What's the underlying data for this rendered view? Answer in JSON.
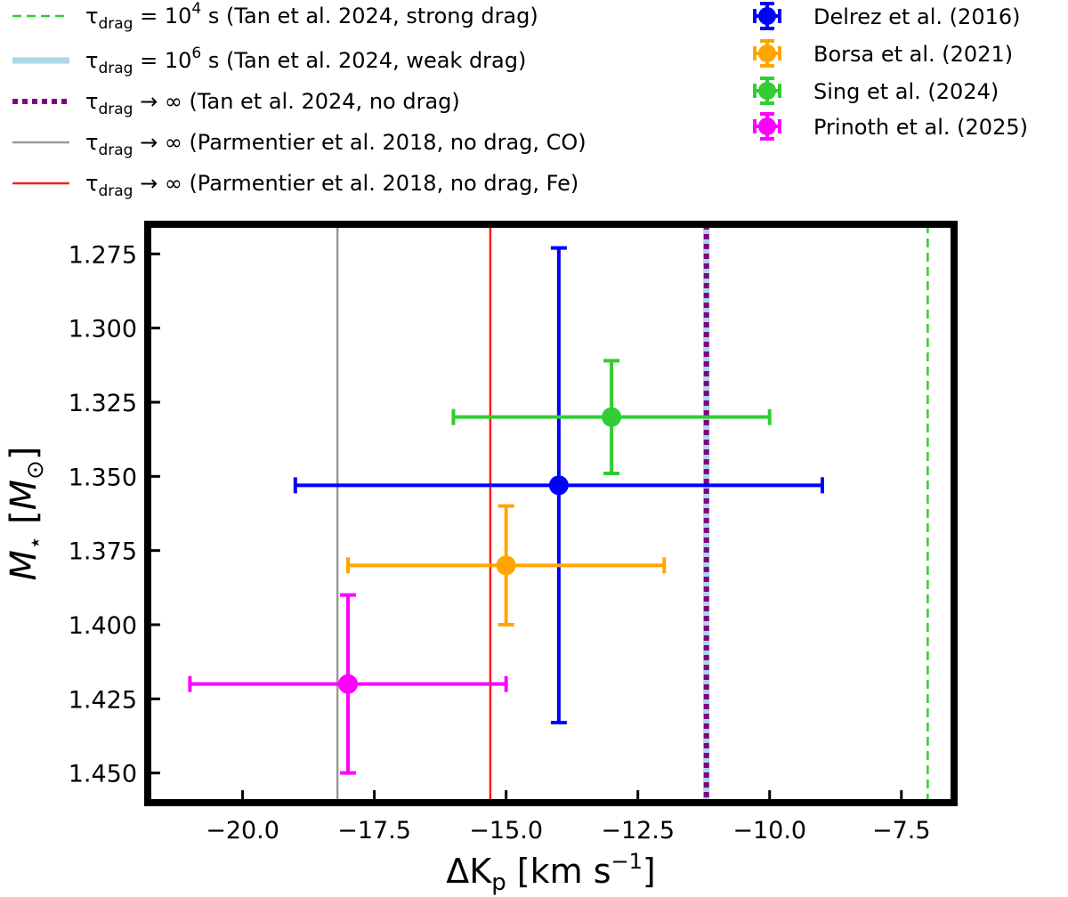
{
  "chart_data": {
    "type": "scatter",
    "xlabel": "ΔK",
    "xlabel_sub": "p",
    "xlabel_unit": "[km s",
    "xlabel_unit_exp": "−1",
    "xlabel_unit_close": "]",
    "ylabel": "M",
    "ylabel_sub": "⋆",
    "ylabel_unit": "[M",
    "ylabel_unit_sub": "⊙",
    "ylabel_unit_close": "]",
    "xlim": [
      -21.8,
      -6.5
    ],
    "ylim": [
      1.46,
      1.265
    ],
    "y_inverted": true,
    "xticks": [
      -20.0,
      -17.5,
      -15.0,
      -12.5,
      -10.0,
      -7.5
    ],
    "xtick_labels": [
      "−20.0",
      "−17.5",
      "−15.0",
      "−12.5",
      "−10.0",
      "−7.5"
    ],
    "yticks": [
      1.275,
      1.3,
      1.325,
      1.35,
      1.375,
      1.4,
      1.425,
      1.45
    ],
    "ytick_labels": [
      "1.275",
      "1.300",
      "1.325",
      "1.350",
      "1.375",
      "1.400",
      "1.425",
      "1.450"
    ],
    "grid": false,
    "legend_left_placement": "above-left",
    "legend_right_placement": "above-right",
    "vlines": [
      {
        "name": "τ_drag = 10^4 s (Tan et al. 2024, strong drag)",
        "x": -7.0,
        "color": "#32cd32",
        "style": "dashed",
        "label_pre": "= 10",
        "label_exp": "4",
        "label_post": " s (Tan et al.  2024,  strong drag)"
      },
      {
        "name": "τ_drag = 10^6 s (Tan et al. 2024, weak drag)",
        "x": -11.2,
        "color": "#add8e6",
        "style": "thick",
        "label_pre": "= 10",
        "label_exp": "6",
        "label_post": " s (Tan et al.  2024,  weak drag)"
      },
      {
        "name": "τ_drag → ∞ (Tan et al. 2024, no drag)",
        "x": -11.2,
        "color": "#800080",
        "style": "dotted",
        "label_pre": "→ ∞ (Tan et al.  2024,  no drag)",
        "label_exp": "",
        "label_post": ""
      },
      {
        "name": "τ_drag → ∞ (Parmentier et al. 2018, no drag, CO)",
        "x": -18.2,
        "color": "#999999",
        "style": "solid",
        "label_pre": "→ ∞ (Parmentier et al.  2018,  no drag,  CO)",
        "label_exp": "",
        "label_post": ""
      },
      {
        "name": "τ_drag → ∞ (Parmentier et al. 2018, no drag, Fe)",
        "x": -15.3,
        "color": "#ff1a1a",
        "style": "solid",
        "label_pre": "→ ∞ (Parmentier et al.  2018,  no drag,  Fe)",
        "label_exp": "",
        "label_post": ""
      }
    ],
    "tau_symbol": "τ",
    "tau_sub": "drag",
    "series": [
      {
        "name": "Delrez et al. (2016)",
        "color": "#0000ff",
        "x": -14.0,
        "y": 1.353,
        "xerr": [
          5.0,
          5.0
        ],
        "yerr": [
          0.08,
          0.08
        ]
      },
      {
        "name": "Borsa et al. (2021)",
        "color": "#ffa500",
        "x": -15.0,
        "y": 1.38,
        "xerr": [
          3.0,
          3.0
        ],
        "yerr": [
          0.02,
          0.02
        ]
      },
      {
        "name": "Sing et al. (2024)",
        "color": "#32cd32",
        "x": -13.0,
        "y": 1.33,
        "xerr": [
          3.0,
          3.0
        ],
        "yerr": [
          0.019,
          0.019
        ]
      },
      {
        "name": "Prinoth et al. (2025)",
        "color": "#ff00ff",
        "x": -18.0,
        "y": 1.42,
        "xerr": [
          3.0,
          3.0
        ],
        "yerr": [
          0.03,
          0.03
        ]
      }
    ]
  }
}
